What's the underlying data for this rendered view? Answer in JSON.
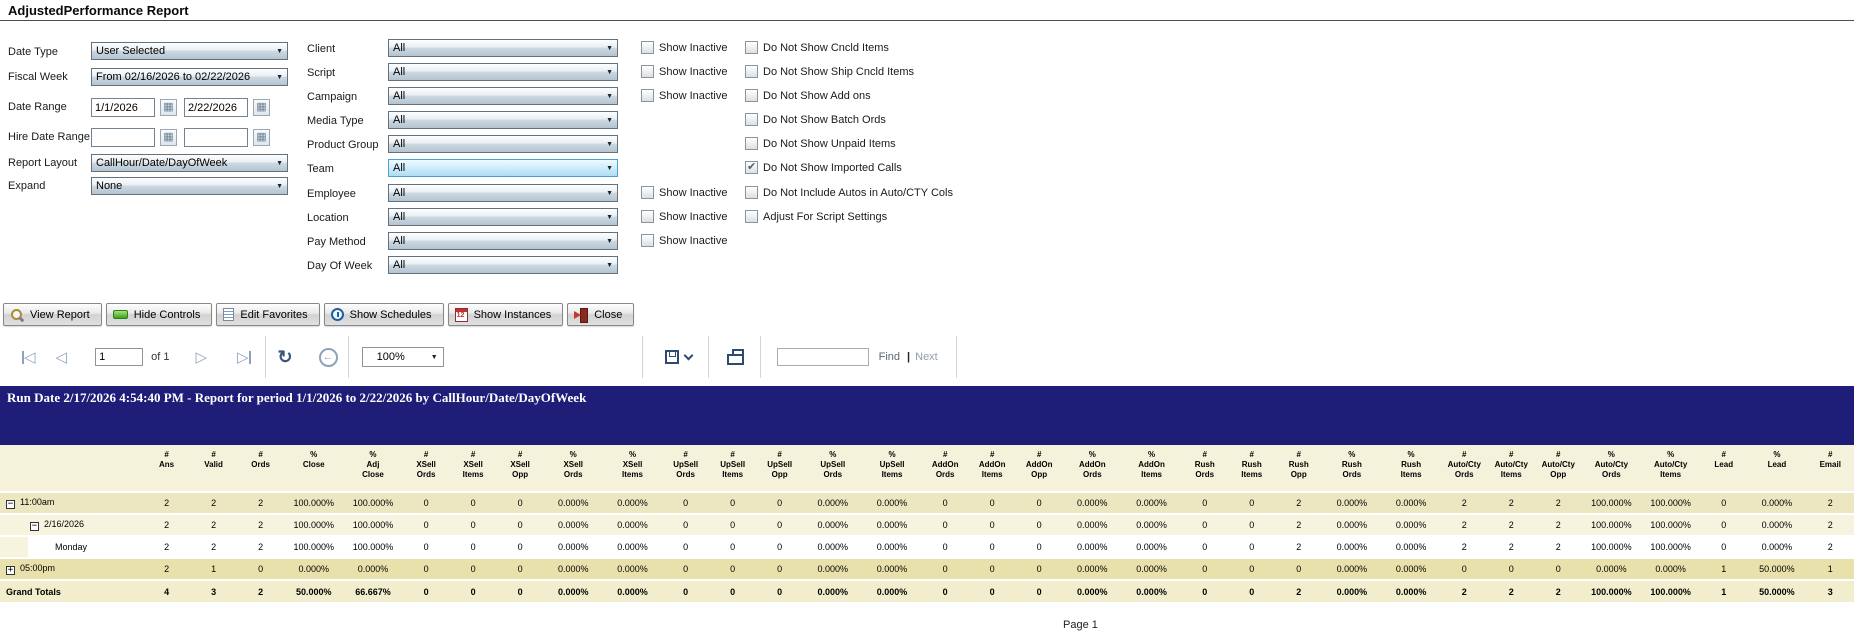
{
  "title": "AdjustedPerformance Report",
  "filters": {
    "show_inactive_label": "Show Inactive",
    "left": [
      {
        "label": "Date Type",
        "type": "select",
        "value": "User Selected"
      },
      {
        "label": "Fiscal Week",
        "type": "select",
        "value": "From 02/16/2026 to 02/22/2026"
      },
      {
        "label": "Date Range",
        "type": "daterange",
        "from": "1/1/2026",
        "to": "2/22/2026"
      },
      {
        "label": "Hire Date Range",
        "type": "daterange",
        "from": "",
        "to": ""
      },
      {
        "label": "Report Layout",
        "type": "select",
        "value": "CallHour/Date/DayOfWeek"
      },
      {
        "label": "Expand",
        "type": "select",
        "value": "None"
      }
    ],
    "middle": [
      {
        "label": "Client",
        "value": "All",
        "show_inactive": true,
        "highlighted": false
      },
      {
        "label": "Script",
        "value": "All",
        "show_inactive": true,
        "highlighted": false
      },
      {
        "label": "Campaign",
        "value": "All",
        "show_inactive": true,
        "highlighted": false
      },
      {
        "label": "Media Type",
        "value": "All",
        "show_inactive": false,
        "highlighted": false
      },
      {
        "label": "Product Group",
        "value": "All",
        "show_inactive": false,
        "highlighted": false
      },
      {
        "label": "Team",
        "value": "All",
        "show_inactive": false,
        "highlighted": true
      },
      {
        "label": "Employee",
        "value": "All",
        "show_inactive": true,
        "highlighted": false
      },
      {
        "label": "Location",
        "value": "All",
        "show_inactive": true,
        "highlighted": false
      },
      {
        "label": "Pay Method",
        "value": "All",
        "show_inactive": true,
        "highlighted": false
      },
      {
        "label": "Day Of Week",
        "value": "All",
        "show_inactive": false,
        "highlighted": false
      }
    ],
    "options": [
      {
        "label": "Do Not Show Cncld Items",
        "checked": false
      },
      {
        "label": "Do Not Show Ship Cncld Items",
        "checked": false
      },
      {
        "label": "Do Not Show Add ons",
        "checked": false
      },
      {
        "label": "Do Not Show Batch Ords",
        "checked": false
      },
      {
        "label": "Do Not Show Unpaid Items",
        "checked": false
      },
      {
        "label": "Do Not Show Imported Calls",
        "checked": true
      },
      {
        "label": "Do Not Include Autos in Auto/CTY Cols",
        "checked": false
      },
      {
        "label": "Adjust For Script Settings",
        "checked": false
      }
    ]
  },
  "toolbar": {
    "buttons": [
      {
        "label": "View Report",
        "icon": "magnifier-icon"
      },
      {
        "label": "Hide Controls",
        "icon": "hide-controls-icon"
      },
      {
        "label": "Edit Favorites",
        "icon": "favorites-icon"
      },
      {
        "label": "Show Schedules",
        "icon": "clock-icon"
      },
      {
        "label": "Show Instances",
        "icon": "instances-icon"
      },
      {
        "label": "Close",
        "icon": "exit-icon"
      }
    ]
  },
  "viewer": {
    "page": "1",
    "of_label": "of 1",
    "zoom": "100%",
    "find_label": "Find",
    "next_label": "Next"
  },
  "report": {
    "run_line": "Run Date 2/17/2026 4:54:40 PM - Report for period 1/1/2026 to 2/22/2026 by CallHour/Date/DayOfWeek",
    "page_footer": "Page 1",
    "table": {
      "columns": [
        [
          "#",
          "Ans"
        ],
        [
          "#",
          "Valid"
        ],
        [
          "#",
          "Ords"
        ],
        [
          "%",
          "Close"
        ],
        [
          "%",
          "Adj",
          "Close"
        ],
        [
          "#",
          "XSell",
          "Ords"
        ],
        [
          "#",
          "XSell",
          "Items"
        ],
        [
          "#",
          "XSell",
          "Opp"
        ],
        [
          "%",
          "XSell",
          "Ords"
        ],
        [
          "%",
          "XSell",
          "Items"
        ],
        [
          "#",
          "UpSell",
          "Ords"
        ],
        [
          "#",
          "UpSell",
          "Items"
        ],
        [
          "#",
          "UpSell",
          "Opp"
        ],
        [
          "%",
          "UpSell",
          "Ords"
        ],
        [
          "%",
          "UpSell",
          "Items"
        ],
        [
          "#",
          "AddOn",
          "Ords"
        ],
        [
          "#",
          "AddOn",
          "Items"
        ],
        [
          "#",
          "AddOn",
          "Opp"
        ],
        [
          "%",
          "AddOn",
          "Ords"
        ],
        [
          "%",
          "AddOn",
          "Items"
        ],
        [
          "#",
          "Rush",
          "Ords"
        ],
        [
          "#",
          "Rush",
          "Items"
        ],
        [
          "#",
          "Rush",
          "Opp"
        ],
        [
          "%",
          "Rush",
          "Ords"
        ],
        [
          "%",
          "Rush",
          "Items"
        ],
        [
          "#",
          "Auto/Cty",
          "Ords"
        ],
        [
          "#",
          "Auto/Cty",
          "Items"
        ],
        [
          "#",
          "Auto/Cty",
          "Opp"
        ],
        [
          "%",
          "Auto/Cty",
          "Ords"
        ],
        [
          "%",
          "Auto/Cty",
          "Items"
        ],
        [
          "#",
          "Lead"
        ],
        [
          "%",
          "Lead"
        ],
        [
          "#",
          "Email"
        ]
      ],
      "rows": [
        {
          "label": "11:00am",
          "level": 0,
          "expand": "minus",
          "style": "group1",
          "values": [
            "2",
            "2",
            "2",
            "100.000%",
            "100.000%",
            "0",
            "0",
            "0",
            "0.000%",
            "0.000%",
            "0",
            "0",
            "0",
            "0.000%",
            "0.000%",
            "0",
            "0",
            "0",
            "0.000%",
            "0.000%",
            "0",
            "0",
            "2",
            "0.000%",
            "0.000%",
            "2",
            "2",
            "2",
            "100.000%",
            "100.000%",
            "0",
            "0.000%",
            "2"
          ]
        },
        {
          "label": "2/16/2026",
          "level": 1,
          "expand": "minus",
          "style": "group2",
          "values": [
            "2",
            "2",
            "2",
            "100.000%",
            "100.000%",
            "0",
            "0",
            "0",
            "0.000%",
            "0.000%",
            "0",
            "0",
            "0",
            "0.000%",
            "0.000%",
            "0",
            "0",
            "0",
            "0.000%",
            "0.000%",
            "0",
            "0",
            "2",
            "0.000%",
            "0.000%",
            "2",
            "2",
            "2",
            "100.000%",
            "100.000%",
            "0",
            "0.000%",
            "2"
          ]
        },
        {
          "label": "Monday",
          "level": 2,
          "expand": null,
          "style": "detail",
          "values": [
            "2",
            "2",
            "2",
            "100.000%",
            "100.000%",
            "0",
            "0",
            "0",
            "0.000%",
            "0.000%",
            "0",
            "0",
            "0",
            "0.000%",
            "0.000%",
            "0",
            "0",
            "0",
            "0.000%",
            "0.000%",
            "0",
            "0",
            "2",
            "0.000%",
            "0.000%",
            "2",
            "2",
            "2",
            "100.000%",
            "100.000%",
            "0",
            "0.000%",
            "2"
          ]
        },
        {
          "label": "05:00pm",
          "level": 0,
          "expand": "plus",
          "style": "group1b",
          "values": [
            "2",
            "1",
            "0",
            "0.000%",
            "0.000%",
            "0",
            "0",
            "0",
            "0.000%",
            "0.000%",
            "0",
            "0",
            "0",
            "0.000%",
            "0.000%",
            "0",
            "0",
            "0",
            "0.000%",
            "0.000%",
            "0",
            "0",
            "0",
            "0.000%",
            "0.000%",
            "0",
            "0",
            "0",
            "0.000%",
            "0.000%",
            "1",
            "50.000%",
            "1"
          ]
        },
        {
          "label": "Grand Totals",
          "level": 0,
          "expand": null,
          "style": "totals",
          "values": [
            "4",
            "3",
            "2",
            "50.000%",
            "66.667%",
            "0",
            "0",
            "0",
            "0.000%",
            "0.000%",
            "0",
            "0",
            "0",
            "0.000%",
            "0.000%",
            "0",
            "0",
            "0",
            "0.000%",
            "0.000%",
            "0",
            "0",
            "2",
            "0.000%",
            "0.000%",
            "2",
            "2",
            "2",
            "100.000%",
            "100.000%",
            "1",
            "50.000%",
            "3"
          ]
        }
      ]
    }
  },
  "colors": {
    "accent_navy": "#1e1e78",
    "header_beige": "#f5f2db",
    "row_group1": "#ece7c0",
    "row_group2": "#f6f3df",
    "row_group_dark": "#e9e1ab",
    "row_totals": "#f2eecd",
    "team_highlight": "#aedcf4"
  }
}
